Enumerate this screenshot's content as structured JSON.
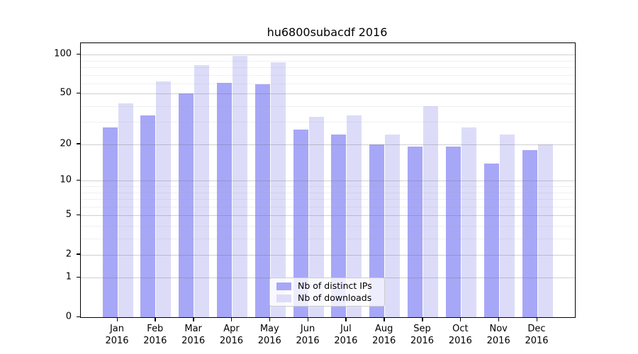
{
  "chart_data": {
    "type": "bar",
    "title": "hu6800subacdf 2016",
    "categories": [
      "Jan",
      "Feb",
      "Mar",
      "Apr",
      "May",
      "Jun",
      "Jul",
      "Aug",
      "Sep",
      "Oct",
      "Nov",
      "Dec"
    ],
    "xtick_year": "2016",
    "series": [
      {
        "name": "Nb of distinct IPs",
        "color": "#a7a7f7",
        "values": [
          27,
          34,
          50,
          61,
          59,
          26,
          24,
          20,
          19,
          19,
          14,
          18
        ]
      },
      {
        "name": "Nb of downloads",
        "color": "#dcdcf9",
        "values": [
          42,
          62,
          83,
          98,
          87,
          33,
          34,
          24,
          40,
          27,
          24,
          20
        ]
      }
    ],
    "yscale": "log1p",
    "ytick_labels": [
      "100",
      "50",
      "20",
      "10",
      "5",
      "2",
      "1",
      "0"
    ],
    "yticks": [
      100,
      50,
      20,
      10,
      5,
      2,
      1,
      0
    ],
    "minor_yticks": [
      3,
      4,
      6,
      7,
      8,
      9,
      30,
      40,
      60,
      70,
      80,
      90
    ],
    "ylim": [
      0,
      124
    ],
    "grid": true,
    "grid_above_bars": true,
    "legend_position": "lower center-right, inside plot",
    "colors": {
      "spine": "#000000",
      "major_grid": "#c9c9c9",
      "minor_grid": "#ececec",
      "legend_border": "#cccccc"
    }
  }
}
